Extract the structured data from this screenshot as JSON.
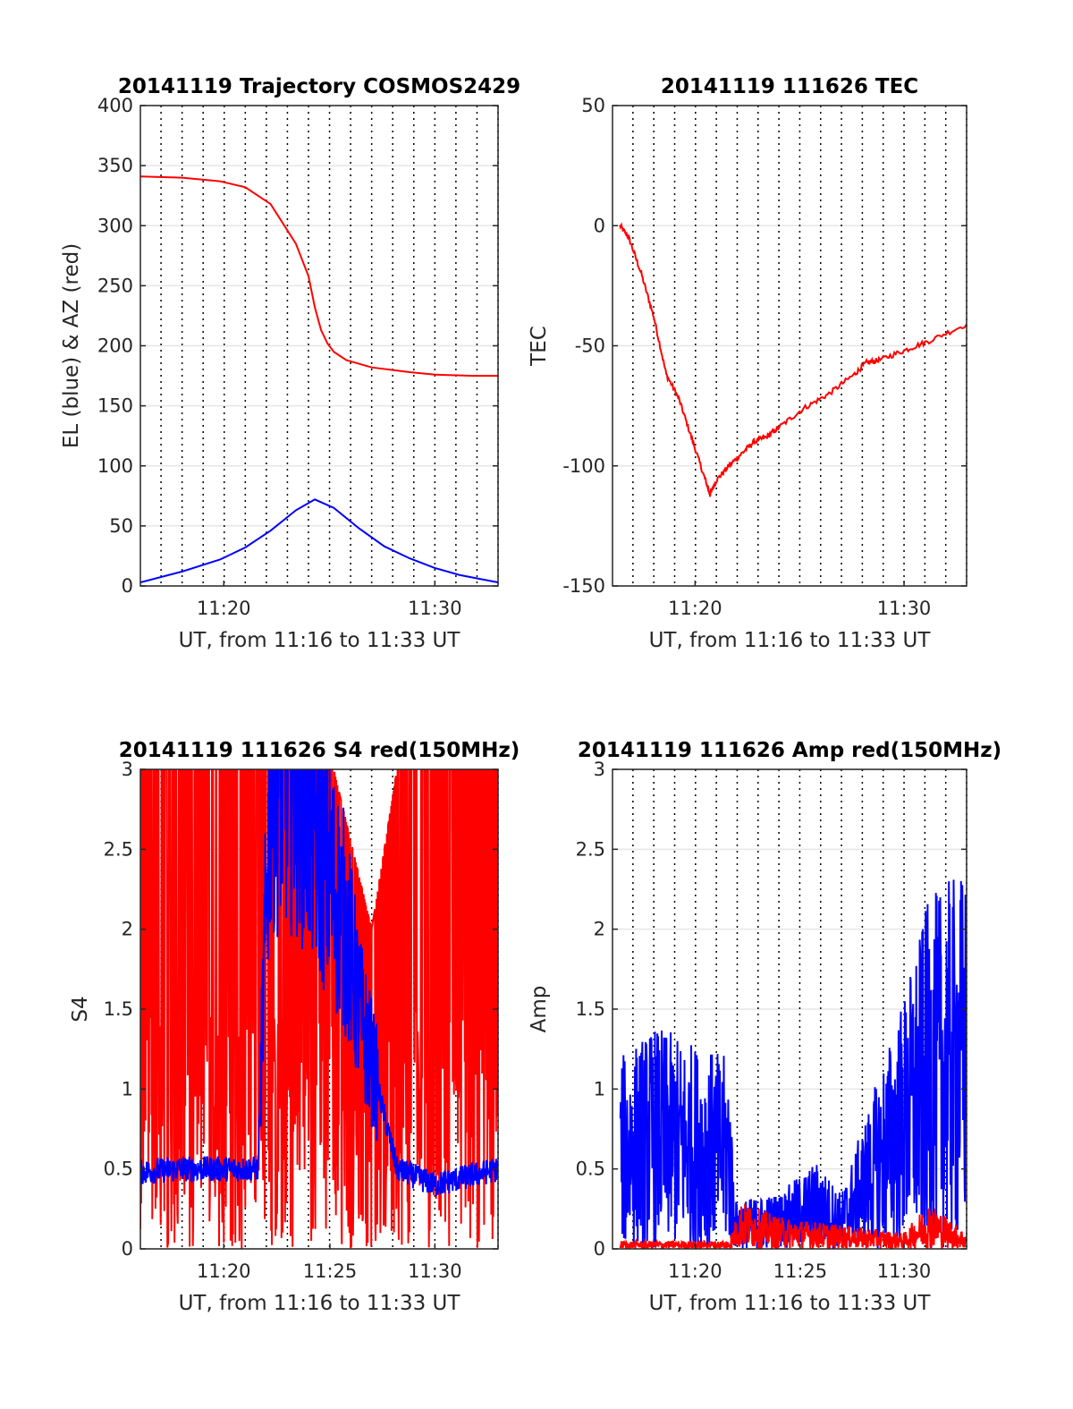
{
  "charts": [
    {
      "id": "trajectory",
      "type": "line",
      "title": "20141119 Trajectory COSMOS2429",
      "xlabel": "UT, from 11:16 to 11:33 UT",
      "ylabel": "EL (blue) & AZ (red)",
      "xlim": [
        11.267,
        11.55
      ],
      "ylim": [
        0,
        400
      ],
      "yticks": [
        0,
        50,
        100,
        150,
        200,
        250,
        300,
        350,
        400
      ],
      "ytick_labels": [
        "0",
        "50",
        "100",
        "150",
        "200",
        "250",
        "300",
        "350",
        "400"
      ],
      "xticks": [
        11.333,
        11.5
      ],
      "xtick_labels": [
        "11:20",
        "11:30"
      ],
      "grid": true,
      "series": [
        {
          "color": "#ff0000",
          "x": [
            11.267,
            11.3,
            11.33,
            11.35,
            11.37,
            11.39,
            11.4,
            11.405,
            11.41,
            11.415,
            11.42,
            11.43,
            11.45,
            11.48,
            11.5,
            11.53,
            11.55
          ],
          "y": [
            341,
            340,
            337,
            332,
            318,
            285,
            258,
            232,
            213,
            202,
            195,
            188,
            182,
            178,
            176,
            175,
            175
          ]
        },
        {
          "color": "#0000ff",
          "x": [
            11.267,
            11.3,
            11.33,
            11.35,
            11.37,
            11.39,
            11.405,
            11.42,
            11.44,
            11.46,
            11.48,
            11.5,
            11.52,
            11.55
          ],
          "y": [
            3,
            12,
            22,
            32,
            46,
            63,
            72,
            65,
            48,
            33,
            23,
            15,
            9,
            3
          ]
        }
      ]
    },
    {
      "id": "tec",
      "type": "line",
      "title": "20141119 111626 TEC",
      "xlabel": "UT, from 11:16 to 11:33 UT",
      "ylabel": "TEC",
      "xlim": [
        11.267,
        11.55
      ],
      "ylim": [
        -150,
        50
      ],
      "yticks": [
        -150,
        -100,
        -50,
        0,
        50
      ],
      "ytick_labels": [
        "-150",
        "-100",
        "-50",
        "0",
        "50"
      ],
      "xticks": [
        11.333,
        11.5
      ],
      "xtick_labels": [
        "11:20",
        "11:30"
      ],
      "grid": true,
      "series": [
        {
          "color": "#ff0000",
          "x": [
            11.273,
            11.28,
            11.29,
            11.3,
            11.31,
            11.32,
            11.33,
            11.34,
            11.345,
            11.35,
            11.36,
            11.37,
            11.38,
            11.39,
            11.4,
            11.42,
            11.44,
            11.46,
            11.47,
            11.48,
            11.5,
            11.52,
            11.55
          ],
          "y": [
            0,
            -5,
            -20,
            -38,
            -62,
            -72,
            -88,
            -104,
            -112,
            -106,
            -100,
            -95,
            -90,
            -88,
            -84,
            -76,
            -70,
            -62,
            -57,
            -56,
            -52,
            -48,
            -41
          ]
        }
      ]
    },
    {
      "id": "s4",
      "type": "line",
      "title": "20141119 111626 S4 red(150MHz)",
      "xlabel": "UT, from 11:16 to 11:33 UT",
      "ylabel": "S4",
      "xlim": [
        11.267,
        11.55
      ],
      "ylim": [
        0,
        3
      ],
      "yticks": [
        0,
        0.5,
        1,
        1.5,
        2,
        2.5,
        3
      ],
      "ytick_labels": [
        "0",
        "0.5",
        "1",
        "1.5",
        "2",
        "2.5",
        "3"
      ],
      "xticks": [
        11.333,
        11.417,
        11.5
      ],
      "xtick_labels": [
        "11:20",
        "11:25",
        "11:30"
      ],
      "grid": true,
      "series": [
        {
          "color": "#ff0000",
          "x": [
            11.267,
            11.35,
            11.42,
            11.45,
            11.47,
            11.55
          ],
          "y": [
            3,
            3,
            3,
            2.0,
            3,
            3
          ],
          "note_type": "noise-band-full"
        },
        {
          "color": "#0000ff",
          "x": [
            11.267,
            11.3,
            11.36,
            11.37,
            11.39,
            11.41,
            11.43,
            11.44,
            11.47,
            11.5,
            11.55
          ],
          "y": [
            0.48,
            0.5,
            0.5,
            3,
            3,
            2.5,
            2.0,
            1.5,
            0.5,
            0.4,
            0.5
          ]
        }
      ]
    },
    {
      "id": "amp",
      "type": "line",
      "title": "20141119 111626 Amp red(150MHz)",
      "xlabel": "UT, from 11:16 to 11:33 UT",
      "ylabel": "Amp",
      "xlim": [
        11.267,
        11.55
      ],
      "ylim": [
        0,
        3
      ],
      "yticks": [
        0,
        0.5,
        1,
        1.5,
        2,
        2.5,
        3
      ],
      "ytick_labels": [
        "0",
        "0.5",
        "1",
        "1.5",
        "2",
        "2.5",
        "3"
      ],
      "xticks": [
        11.333,
        11.417,
        11.5
      ],
      "xtick_labels": [
        "11:20",
        "11:25",
        "11:30"
      ],
      "grid": true,
      "series": [
        {
          "color": "#0000ff",
          "x": [
            11.273,
            11.3,
            11.33,
            11.36,
            11.365,
            11.4,
            11.43,
            11.45,
            11.5,
            11.52,
            11.55
          ],
          "y": [
            1.2,
            1.4,
            1.3,
            1.2,
            0.3,
            0.35,
            0.55,
            0.35,
            1.6,
            2.2,
            2.4
          ]
        },
        {
          "color": "#ff0000",
          "x": [
            11.273,
            11.36,
            11.37,
            11.4,
            11.5,
            11.52,
            11.55
          ],
          "y": [
            0.05,
            0.05,
            0.3,
            0.2,
            0.1,
            0.3,
            0.1
          ]
        }
      ]
    }
  ]
}
